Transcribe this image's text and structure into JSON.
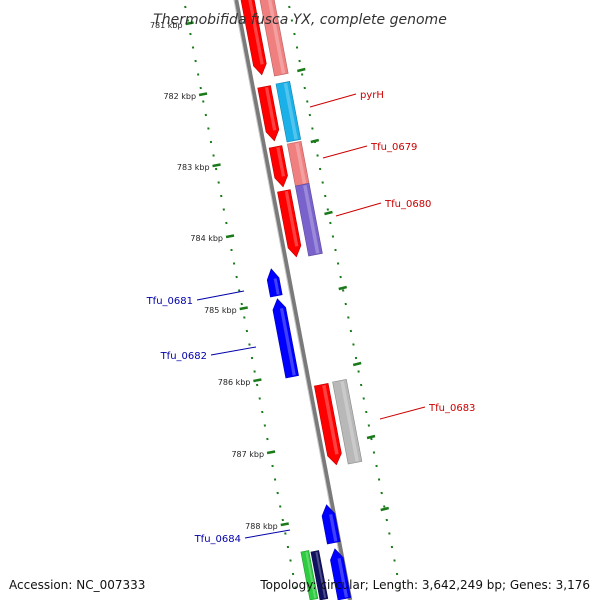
{
  "title": "Thermobifida fusca YX, complete genome",
  "footer": {
    "accession": "Accession: NC_007333",
    "topology": "Topology: circular; Length: 3,642,249 bp; Genes: 3,176"
  },
  "colors": {
    "backbone": "#7a7a7a",
    "tick": "#1a7a1a",
    "forward_label": "#cc0000",
    "reverse_label": "#0000aa",
    "cds_forward": "#ff0000",
    "cds_reverse": "#0000ff",
    "feature_light_red": "#f08080",
    "feature_cyan": "#1ab0e8",
    "feature_purple": "#7a62cc",
    "feature_gray": "#b8b8b8",
    "feature_green": "#2ecc40",
    "feature_navy": "#101060"
  },
  "ticks": [
    "781 kbp",
    "782 kbp",
    "783 kbp",
    "784 kbp",
    "785 kbp",
    "786 kbp",
    "787 kbp",
    "788 kbp"
  ],
  "gene_labels": [
    {
      "text": "pyrH",
      "strand": "forward"
    },
    {
      "text": "Tfu_0679",
      "strand": "forward"
    },
    {
      "text": "Tfu_0680",
      "strand": "forward"
    },
    {
      "text": "Tfu_0681",
      "strand": "reverse"
    },
    {
      "text": "Tfu_0682",
      "strand": "reverse"
    },
    {
      "text": "Tfu_0683",
      "strand": "forward"
    },
    {
      "text": "Tfu_0684",
      "strand": "reverse"
    }
  ],
  "features": [
    {
      "name": "feature-forward-cds",
      "color": "cds_forward"
    },
    {
      "name": "feature-forward-misc",
      "color": "feature_light_red"
    },
    {
      "name": "feature-pyrH-cds",
      "color": "cds_forward"
    },
    {
      "name": "feature-pyrH-gene",
      "color": "feature_cyan"
    },
    {
      "name": "feature-tfu0679-cds",
      "color": "cds_forward"
    },
    {
      "name": "feature-tfu0679-gene",
      "color": "feature_light_red"
    },
    {
      "name": "feature-tfu0680-cds",
      "color": "cds_forward"
    },
    {
      "name": "feature-tfu0680-gene",
      "color": "feature_purple"
    },
    {
      "name": "feature-tfu0681-cds",
      "color": "cds_reverse"
    },
    {
      "name": "feature-tfu0682-cds",
      "color": "cds_reverse"
    },
    {
      "name": "feature-tfu0683-cds",
      "color": "cds_forward"
    },
    {
      "name": "feature-tfu0683-gene",
      "color": "feature_gray"
    },
    {
      "name": "feature-tfu0684-cds",
      "color": "cds_reverse"
    },
    {
      "name": "feature-bottom-green",
      "color": "feature_green"
    },
    {
      "name": "feature-bottom-navy",
      "color": "feature_navy"
    },
    {
      "name": "feature-bottom-blue",
      "color": "cds_reverse"
    }
  ]
}
